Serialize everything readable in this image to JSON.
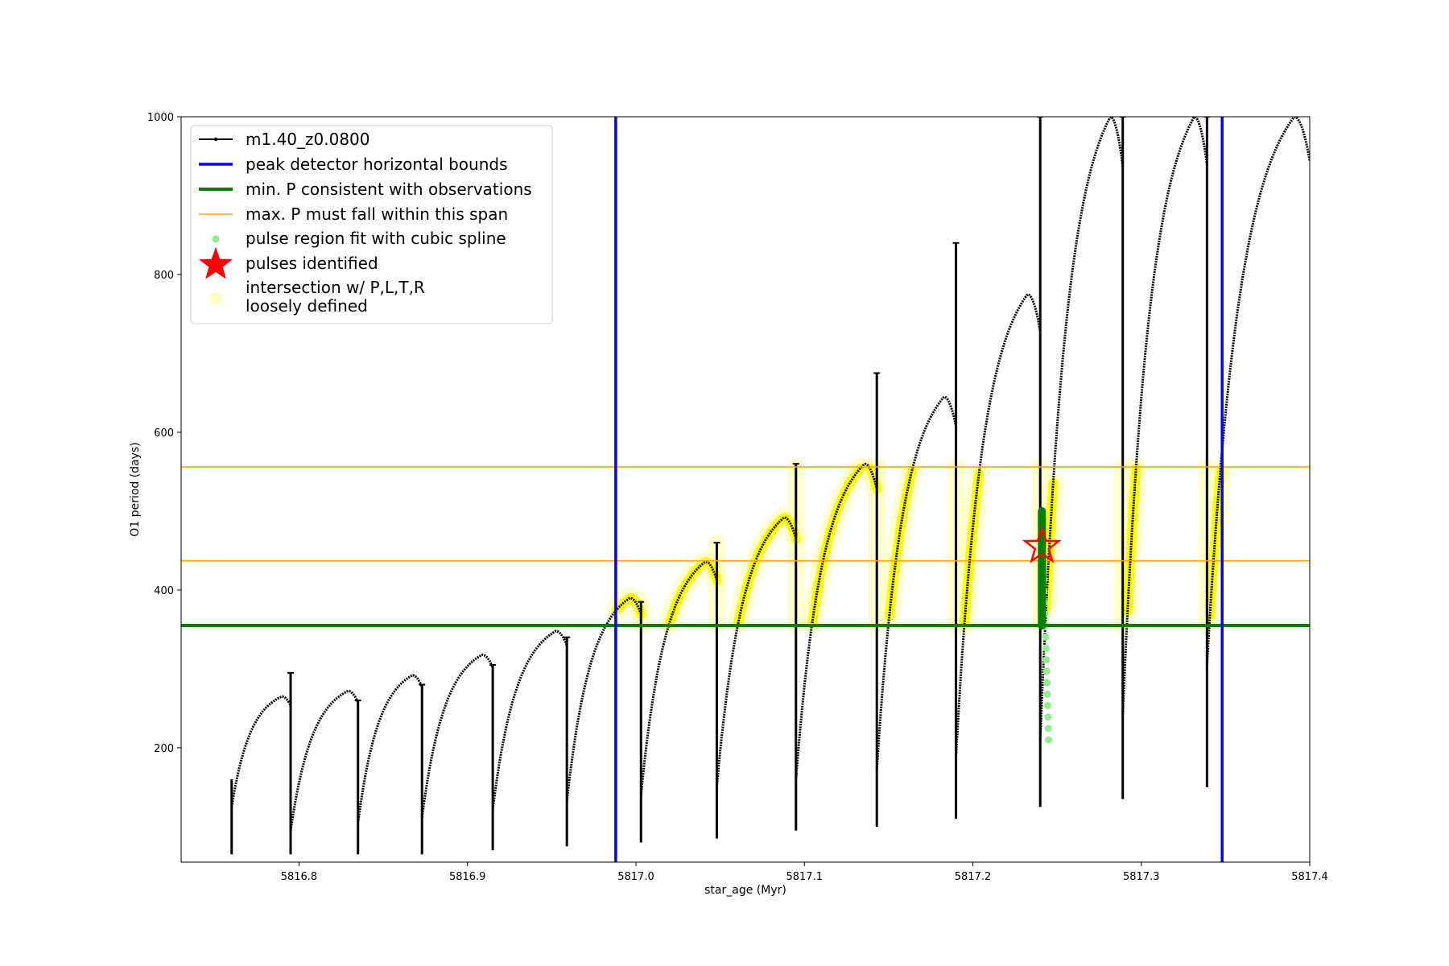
{
  "chart_data": {
    "type": "line",
    "xlabel": "star_age (Myr)",
    "ylabel": "O1 period (days)",
    "xlim": [
      5816.73,
      5817.4
    ],
    "ylim": [
      55,
      1000
    ],
    "xticks": [
      5816.8,
      5816.9,
      5817.0,
      5817.1,
      5817.2,
      5817.3,
      5817.4
    ],
    "xtick_labels": [
      "5816.8",
      "5816.9",
      "5817.0",
      "5817.1",
      "5817.2",
      "5817.3",
      "5817.4"
    ],
    "yticks": [
      200,
      400,
      600,
      800,
      1000
    ],
    "ytick_labels": [
      "200",
      "400",
      "600",
      "800",
      "1000"
    ],
    "legend_position": "top-left",
    "colors": {
      "track": "#000000",
      "bounds": "#0000ff",
      "min_p": "#008000",
      "max_p": "#ffa500",
      "spline": "#90ee90",
      "star": "#ff0000",
      "intersection": "#ffff00",
      "loose": "#ffffc0"
    },
    "series": [
      {
        "name": "m1.40_z0.0800",
        "pulses": [
          {
            "start": 5816.76,
            "end": 5816.795,
            "min": 125,
            "peak": 265,
            "spike_low": 65,
            "spike_high": 295
          },
          {
            "start": 5816.795,
            "end": 5816.835,
            "min": 95,
            "peak": 272,
            "spike_low": 65,
            "spike_high": 260
          },
          {
            "start": 5816.835,
            "end": 5816.873,
            "min": 105,
            "peak": 292,
            "spike_low": 65,
            "spike_high": 280
          },
          {
            "start": 5816.873,
            "end": 5816.915,
            "min": 112,
            "peak": 318,
            "spike_low": 70,
            "spike_high": 305
          },
          {
            "start": 5816.915,
            "end": 5816.959,
            "min": 122,
            "peak": 348,
            "spike_low": 75,
            "spike_high": 340
          },
          {
            "start": 5816.959,
            "end": 5817.003,
            "min": 132,
            "peak": 390,
            "spike_low": 80,
            "spike_high": 385
          },
          {
            "start": 5817.003,
            "end": 5817.048,
            "min": 140,
            "peak": 436,
            "spike_low": 85,
            "spike_high": 460
          },
          {
            "start": 5817.048,
            "end": 5817.095,
            "min": 150,
            "peak": 492,
            "spike_low": 95,
            "spike_high": 560
          },
          {
            "start": 5817.095,
            "end": 5817.143,
            "min": 160,
            "peak": 560,
            "spike_low": 100,
            "spike_high": 675
          },
          {
            "start": 5817.143,
            "end": 5817.19,
            "min": 172,
            "peak": 645,
            "spike_low": 110,
            "spike_high": 840
          },
          {
            "start": 5817.19,
            "end": 5817.24,
            "min": 190,
            "peak": 775,
            "spike_low": 125,
            "spike_high": 1000
          },
          {
            "start": 5817.24,
            "end": 5817.289,
            "min": 210,
            "peak": 1000,
            "spike_low": 135,
            "spike_high": 1000
          },
          {
            "start": 5817.289,
            "end": 5817.339,
            "min": 242,
            "peak": 1000,
            "spike_low": 150,
            "spike_high": 1000
          },
          {
            "start": 5817.339,
            "end": 5817.4,
            "min": 305,
            "peak": 1000,
            "spike_low": 305,
            "spike_high": 1000
          }
        ]
      },
      {
        "name": "peak detector horizontal bounds",
        "x_values": [
          5816.988,
          5817.348
        ]
      },
      {
        "name": "min. P consistent with observations",
        "y_value": 355
      },
      {
        "name": "max. P must fall within this span",
        "y_values": [
          437,
          556
        ]
      },
      {
        "name": "pulse region fit with cubic spline",
        "x_range": [
          5817.241,
          5817.245
        ],
        "y_range": [
          210,
          500
        ]
      },
      {
        "name": "pulses identified",
        "points": [
          {
            "x": 5817.241,
            "y": 455
          }
        ]
      },
      {
        "name": "intersection w/ P,L,T,R\nloosely defined",
        "y_range": [
          355,
          556
        ]
      }
    ]
  },
  "legend": {
    "entries": [
      {
        "key": "track",
        "label": "m1.40_z0.0800"
      },
      {
        "key": "bounds",
        "label": "peak detector horizontal bounds"
      },
      {
        "key": "min_p",
        "label": "min. P consistent with observations"
      },
      {
        "key": "max_p",
        "label": "max. P must fall within this span"
      },
      {
        "key": "spline",
        "label": "pulse region fit with cubic spline"
      },
      {
        "key": "star",
        "label": "pulses identified"
      },
      {
        "key": "loose",
        "label_lines": [
          "intersection w/ P,L,T,R",
          "loosely defined"
        ]
      }
    ]
  }
}
